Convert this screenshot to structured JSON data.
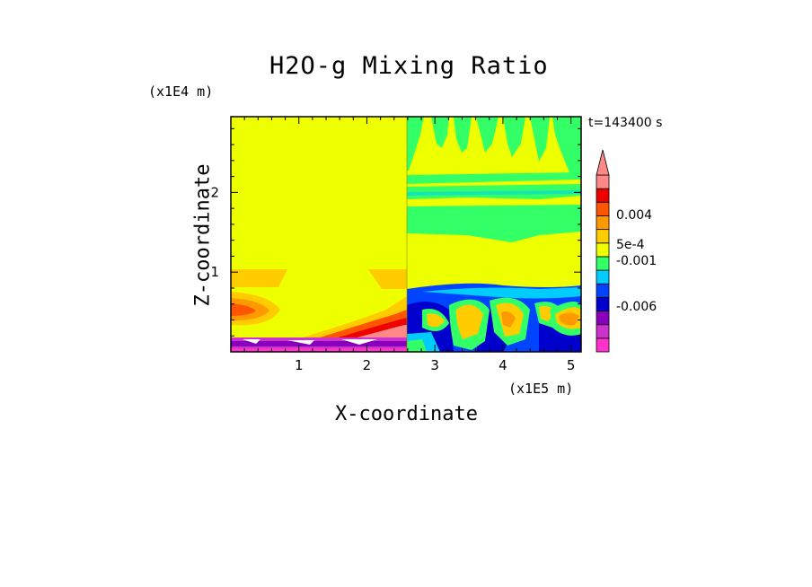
{
  "chart_data": {
    "type": "heatmap",
    "title": "H2O-g Mixing Ratio",
    "xlabel": "X-coordinate",
    "ylabel": "Z-coordinate",
    "x_unit": "(x1E5 m)",
    "y_unit": "(x1E4 m)",
    "timestamp": "t=143400 s",
    "xlim": [
      0,
      5.15
    ],
    "ylim": [
      0,
      2.95
    ],
    "x_ticks": [
      {
        "value": 1,
        "label": "1"
      },
      {
        "value": 2,
        "label": "2"
      },
      {
        "value": 3,
        "label": "3"
      },
      {
        "value": 4,
        "label": "4"
      },
      {
        "value": 5,
        "label": "5"
      }
    ],
    "y_ticks": [
      {
        "value": 1,
        "label": "1"
      },
      {
        "value": 2,
        "label": "2"
      }
    ],
    "colorbar": {
      "levels": [
        {
          "color": "#ff33cc"
        },
        {
          "color": "#cc33cc"
        },
        {
          "color": "#8800bb"
        },
        {
          "color": "#0000cc"
        },
        {
          "color": "#0044ff"
        },
        {
          "color": "#00ccff"
        },
        {
          "color": "#33ff66"
        },
        {
          "color": "#eeff00"
        },
        {
          "color": "#ffcc00"
        },
        {
          "color": "#ff9900"
        },
        {
          "color": "#ff5500"
        },
        {
          "color": "#ee0000"
        },
        {
          "color": "#ff8888"
        }
      ],
      "labels": [
        "0.004",
        "5e-4",
        "-0.001",
        "-0.006"
      ],
      "extend": "max"
    },
    "regions": [
      {
        "x": [
          0,
          2.55
        ],
        "z": [
          0.2,
          2.95
        ],
        "level": "#eeff00"
      },
      {
        "x": [
          0,
          0.75
        ],
        "z": [
          0.85,
          1.02
        ],
        "level": "#ffcc00"
      },
      {
        "x": [
          0,
          0.6
        ],
        "z": [
          0.3,
          0.75
        ],
        "level": "#ff9900"
      },
      {
        "x": [
          2.0,
          2.55
        ],
        "z": [
          0.2,
          0.55
        ],
        "level": "#ff9900"
      },
      {
        "x": [
          0,
          2.55
        ],
        "z": [
          0,
          0.2
        ],
        "level": "#cc33cc"
      },
      {
        "x": [
          2.55,
          5.15
        ],
        "z": [
          0.85,
          2.95
        ],
        "level": "#eeff00"
      },
      {
        "x": [
          2.55,
          5.15
        ],
        "z": [
          0,
          0.85
        ],
        "level": "#0000cc"
      },
      {
        "x": [
          2.55,
          5.15
        ],
        "z": [
          1.35,
          1.7
        ],
        "level": "#33ff66"
      },
      {
        "x": [
          2.55,
          5.15
        ],
        "z": [
          1.9,
          2.15
        ],
        "level": "#33ff66"
      }
    ]
  }
}
